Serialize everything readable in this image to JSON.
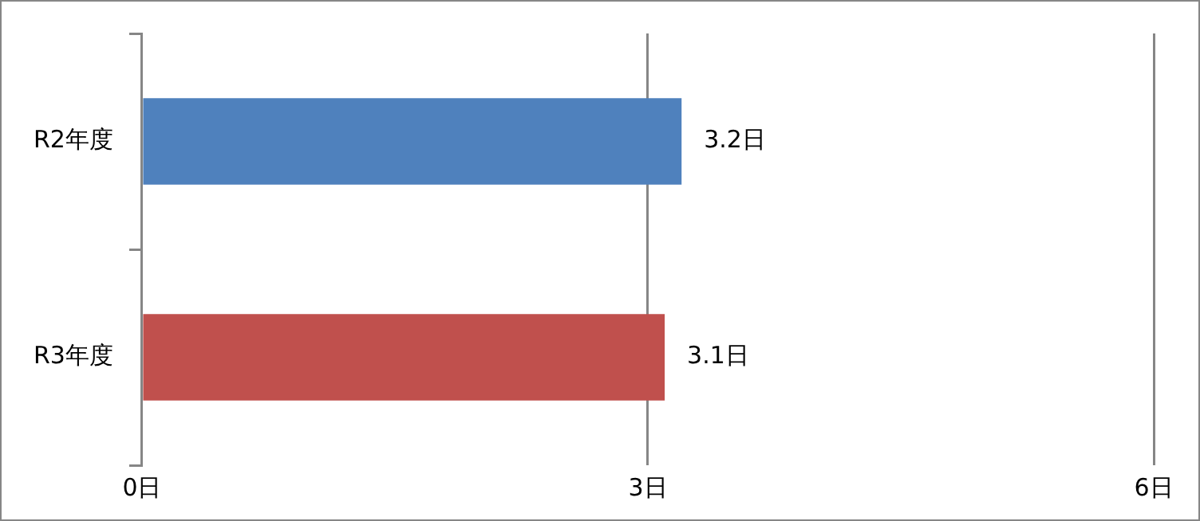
{
  "chart_data": {
    "type": "bar",
    "orientation": "horizontal",
    "categories": [
      "R2年度",
      "R3年度"
    ],
    "series": [
      {
        "colors": [
          "#4f81bd",
          "#c0504d"
        ],
        "values": [
          3.2,
          3.1
        ],
        "value_labels": [
          "3.2日",
          "3.1日"
        ]
      }
    ],
    "xlim": [
      0,
      6
    ],
    "xticks": [
      {
        "value": 0,
        "label": "0日"
      },
      {
        "value": 3,
        "label": "3日"
      },
      {
        "value": 6,
        "label": "6日"
      }
    ],
    "grid": "x",
    "legend": false
  }
}
